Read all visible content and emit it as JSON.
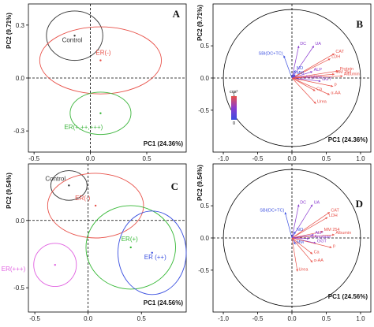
{
  "colors": {
    "control": "#333333",
    "er_neg": "#e8524a",
    "er_all": "#3cb53c",
    "er_pos": "#35b835",
    "er_pp": "#3a4fe0",
    "er_ppp": "#e060e0",
    "var_red": "#e8524a",
    "var_purple": "#8a3bcf",
    "var_blue": "#3a4fe0"
  },
  "chart_data": [
    {
      "type": "scatter",
      "panel": "A",
      "xlabel": "PC1 (24.36%)",
      "ylabel": "PC2 (9.71%)",
      "xlim": [
        -0.55,
        0.85
      ],
      "ylim": [
        -0.42,
        0.42
      ],
      "xticks": [
        "-0.5",
        "0.0",
        "0.5"
      ],
      "yticks": [
        "0.3",
        "0.0",
        "-0.3"
      ],
      "ytick_values": [
        0.3,
        0.0,
        -0.3
      ],
      "xtick_values": [
        -0.5,
        0.0,
        0.5
      ],
      "groups": [
        {
          "name": "Control",
          "x": -0.14,
          "y": 0.24,
          "rx": 0.25,
          "ry": 0.14,
          "color_key": "control"
        },
        {
          "name": "ER(-)",
          "x": 0.09,
          "y": 0.1,
          "rx": 0.54,
          "ry": 0.19,
          "color_key": "er_neg"
        },
        {
          "name": "ER(+,++,+++)",
          "x": 0.09,
          "y": -0.2,
          "rx": 0.27,
          "ry": 0.12,
          "color_key": "er_all"
        }
      ]
    },
    {
      "type": "scatter",
      "panel": "B",
      "xlabel": "PC1 (24.36%)",
      "ylabel": "PC2 (9.71%)",
      "xlim": [
        -1.15,
        1.15
      ],
      "ylim": [
        -1.15,
        1.15
      ],
      "xticks": [
        "-1.0",
        "-0.5",
        "0.0",
        "0.5",
        "1.0"
      ],
      "yticks": [
        "0.5",
        "0.0",
        "-0.5"
      ],
      "ytick_values": [
        0.5,
        0.0,
        -0.5
      ],
      "xtick_values": [
        -1.0,
        -0.5,
        0.0,
        0.5,
        1.0
      ],
      "legend_title": "cos²",
      "legend_ticks": [
        "1",
        "0"
      ],
      "variables": [
        {
          "name": "DC",
          "x": 0.1,
          "y": 0.5,
          "color_key": "var_purple"
        },
        {
          "name": "UA",
          "x": 0.32,
          "y": 0.5,
          "color_key": "var_purple"
        },
        {
          "name": "SBI(DC+TC)",
          "x": -0.12,
          "y": 0.35,
          "color_key": "var_blue"
        },
        {
          "name": "CAT",
          "x": 0.62,
          "y": 0.38,
          "color_key": "var_red"
        },
        {
          "name": "LDH",
          "x": 0.56,
          "y": 0.3,
          "color_key": "var_red"
        },
        {
          "name": "NO",
          "x": 0.05,
          "y": 0.12,
          "color_key": "var_blue"
        },
        {
          "name": "ALP",
          "x": 0.3,
          "y": 0.1,
          "color_key": "var_purple"
        },
        {
          "name": "MM",
          "x": 0.05,
          "y": 0.05,
          "color_key": "var_blue"
        },
        {
          "name": "Protein",
          "x": 0.68,
          "y": 0.11,
          "color_key": "var_red"
        },
        {
          "name": "MM 254",
          "x": 0.62,
          "y": 0.06,
          "color_key": "var_red"
        },
        {
          "name": "Albumin",
          "x": 0.74,
          "y": 0.03,
          "color_key": "var_red"
        },
        {
          "name": "α-Amylase",
          "x": 0.12,
          "y": -0.02,
          "color_key": "var_purple"
        },
        {
          "name": "GGT",
          "x": 0.42,
          "y": -0.05,
          "color_key": "var_purple"
        },
        {
          "name": "p",
          "x": 0.6,
          "y": -0.13,
          "color_key": "var_red"
        },
        {
          "name": "Ca",
          "x": 0.34,
          "y": -0.2,
          "color_key": "var_red"
        },
        {
          "name": "α-AA",
          "x": 0.55,
          "y": -0.26,
          "color_key": "var_red"
        },
        {
          "name": "Urea",
          "x": 0.35,
          "y": -0.4,
          "color_key": "var_red"
        }
      ]
    },
    {
      "type": "scatter",
      "panel": "C",
      "xlabel": "PC1 (24.56%)",
      "ylabel": "PC2 (9.54%)",
      "xlim": [
        -0.56,
        0.92
      ],
      "ylim": [
        -0.68,
        0.42
      ],
      "xticks": [
        "-0.5",
        "0.0",
        "0.5"
      ],
      "yticks": [
        "0.0",
        "-0.5"
      ],
      "ytick_values": [
        0.0,
        -0.5
      ],
      "xtick_values": [
        -0.5,
        0.0,
        0.5
      ],
      "groups": [
        {
          "name": "Control",
          "x": -0.18,
          "y": 0.26,
          "rx": 0.17,
          "ry": 0.11,
          "color_key": "control"
        },
        {
          "name": "ER(-)",
          "x": 0.07,
          "y": 0.11,
          "rx": 0.45,
          "ry": 0.24,
          "color_key": "er_neg"
        },
        {
          "name": "ER(+)",
          "x": 0.4,
          "y": -0.2,
          "rx": 0.42,
          "ry": 0.31,
          "color_key": "er_pos"
        },
        {
          "name": "ER (++)",
          "x": 0.6,
          "y": -0.24,
          "rx": 0.32,
          "ry": 0.31,
          "color_key": "er_pp"
        },
        {
          "name": "ER(+++)",
          "x": -0.31,
          "y": -0.33,
          "rx": 0.2,
          "ry": 0.16,
          "color_key": "er_ppp"
        }
      ]
    },
    {
      "type": "scatter",
      "panel": "D",
      "xlabel": "PC1 (24.56%)",
      "ylabel": "PC2 (9.54%)",
      "xlim": [
        -1.15,
        1.15
      ],
      "ylim": [
        -1.15,
        1.15
      ],
      "xticks": [
        "-1.0",
        "-0.5",
        "0.0",
        "0.5",
        "1.0"
      ],
      "yticks": [
        "0.5",
        "0.0",
        "-0.5"
      ],
      "ytick_values": [
        0.5,
        0.0,
        -0.5
      ],
      "xtick_values": [
        -1.0,
        -0.5,
        0.0,
        0.5,
        1.0
      ],
      "variables": [
        {
          "name": "DC",
          "x": 0.1,
          "y": 0.52,
          "color_key": "var_purple"
        },
        {
          "name": "UA",
          "x": 0.3,
          "y": 0.52,
          "color_key": "var_purple"
        },
        {
          "name": "SBI(DC+TC)",
          "x": -0.1,
          "y": 0.4,
          "color_key": "var_blue"
        },
        {
          "name": "CAT",
          "x": 0.55,
          "y": 0.4,
          "color_key": "var_red"
        },
        {
          "name": "LDH",
          "x": 0.52,
          "y": 0.32,
          "color_key": "var_red"
        },
        {
          "name": "NO",
          "x": 0.05,
          "y": 0.1,
          "color_key": "var_blue"
        },
        {
          "name": "MM 254",
          "x": 0.45,
          "y": 0.1,
          "color_key": "var_red"
        },
        {
          "name": "Albumin",
          "x": 0.62,
          "y": 0.05,
          "color_key": "var_red"
        },
        {
          "name": "ALP",
          "x": 0.32,
          "y": 0.05,
          "color_key": "var_purple"
        },
        {
          "name": "α-Amylase",
          "x": 0.25,
          "y": -0.01,
          "color_key": "var_purple"
        },
        {
          "name": "GGT",
          "x": 0.35,
          "y": -0.08,
          "color_key": "var_purple"
        },
        {
          "name": "MM",
          "x": 0.05,
          "y": -0.1,
          "color_key": "var_blue"
        },
        {
          "name": "p",
          "x": 0.58,
          "y": -0.15,
          "color_key": "var_red"
        },
        {
          "name": "Ca",
          "x": 0.3,
          "y": -0.25,
          "color_key": "var_red"
        },
        {
          "name": "α-AA",
          "x": 0.3,
          "y": -0.38,
          "color_key": "var_red"
        },
        {
          "name": "Urea",
          "x": 0.08,
          "y": -0.52,
          "color_key": "var_red"
        }
      ]
    }
  ]
}
